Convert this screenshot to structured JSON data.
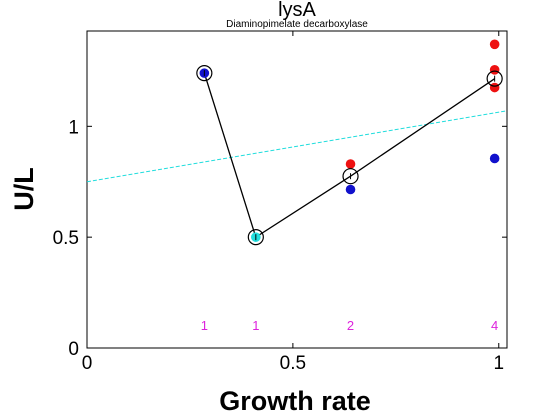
{
  "chart_data": {
    "type": "scatter",
    "title": "lysA",
    "subtitle": "Diaminopimelate decarboxylase",
    "xlabel": "Growth rate",
    "ylabel": "U/L",
    "xlim": [
      0,
      1.02
    ],
    "ylim": [
      0,
      1.43
    ],
    "xticks": [
      0,
      0.5,
      1
    ],
    "xtick_labels": [
      "0",
      "0.5",
      "1"
    ],
    "yticks": [
      0,
      0.5,
      1
    ],
    "ytick_labels": [
      "0",
      "0.5",
      "1"
    ],
    "grid": false,
    "colors": {
      "red": "#ee1111",
      "blue": "#1111cc",
      "cyan": "#22dddd",
      "magenta": "#dd22dd",
      "fit": "#22dddd",
      "line": "#000000"
    },
    "fit_line": {
      "x": [
        0,
        1.02
      ],
      "y": [
        0.75,
        1.07
      ]
    },
    "mean_points": [
      {
        "x": 0.285,
        "y": 1.24
      },
      {
        "x": 0.41,
        "y": 0.5
      },
      {
        "x": 0.64,
        "y": 0.775
      },
      {
        "x": 0.99,
        "y": 1.215
      }
    ],
    "points": [
      {
        "x": 0.285,
        "y": 1.24,
        "color": "blue"
      },
      {
        "x": 0.41,
        "y": 0.5,
        "color": "cyan"
      },
      {
        "x": 0.64,
        "y": 0.83,
        "color": "red"
      },
      {
        "x": 0.64,
        "y": 0.715,
        "color": "blue"
      },
      {
        "x": 0.99,
        "y": 1.37,
        "color": "red"
      },
      {
        "x": 0.99,
        "y": 1.255,
        "color": "red"
      },
      {
        "x": 0.99,
        "y": 1.175,
        "color": "red"
      },
      {
        "x": 0.99,
        "y": 0.855,
        "color": "blue"
      }
    ],
    "counts": [
      {
        "x": 0.285,
        "label": "1"
      },
      {
        "x": 0.41,
        "label": "1"
      },
      {
        "x": 0.64,
        "label": "2"
      },
      {
        "x": 0.99,
        "label": "4"
      }
    ],
    "count_level": 0.1
  }
}
